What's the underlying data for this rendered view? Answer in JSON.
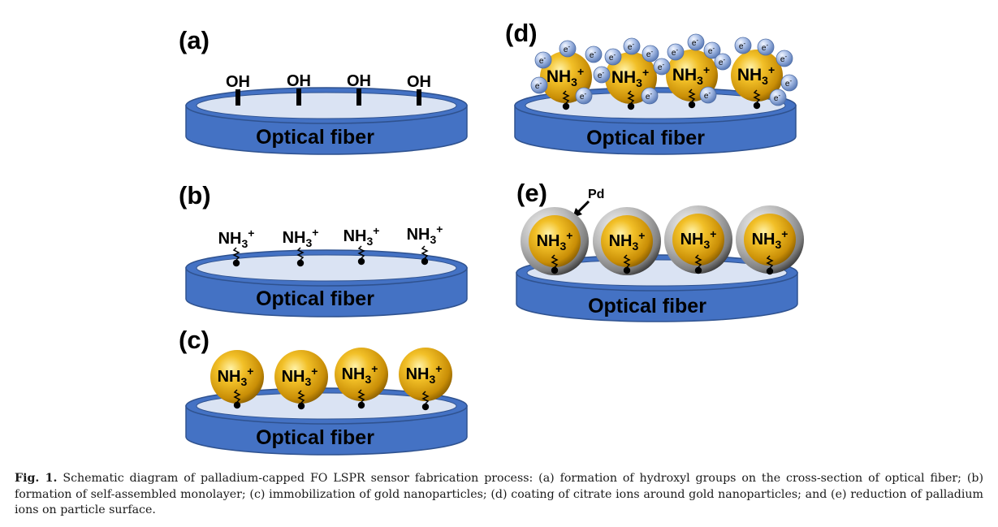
{
  "panels": {
    "a": {
      "label": "(a)",
      "fiber": "Optical fiber",
      "group": "OH"
    },
    "b": {
      "label": "(b)",
      "fiber": "Optical fiber",
      "group_main": "NH",
      "group_sub": "3",
      "group_sup": "+"
    },
    "c": {
      "label": "(c)",
      "fiber": "Optical fiber",
      "group_main": "NH",
      "group_sub": "3",
      "group_sup": "+"
    },
    "d": {
      "label": "(d)",
      "fiber": "Optical fiber",
      "group_main": "NH",
      "group_sub": "3",
      "group_sup": "+",
      "electron_main": "e",
      "electron_sup": "-"
    },
    "e": {
      "label": "(e)",
      "fiber": "Optical fiber",
      "group_main": "NH",
      "group_sub": "3",
      "group_sup": "+",
      "pd_label": "Pd"
    }
  },
  "caption": {
    "fig_label": "Fig. 1.",
    "text": "Schematic diagram of palladium-capped FO LSPR sensor fabrication process: (a) formation of hydroxyl groups on the cross-section of optical fiber; (b) formation of self-assembled monolayer; (c) immobilization of gold nanoparticles; (d) coating of citrate ions around gold nanoparticles; and (e) reduction of palladium ions on particle surface."
  },
  "colors": {
    "fiber_side": "#4472C4",
    "fiber_top": "#DAE3F3",
    "gold": "#D4A017",
    "palladium_shell": "#9E9E9E",
    "electron": "#8FAADC"
  }
}
